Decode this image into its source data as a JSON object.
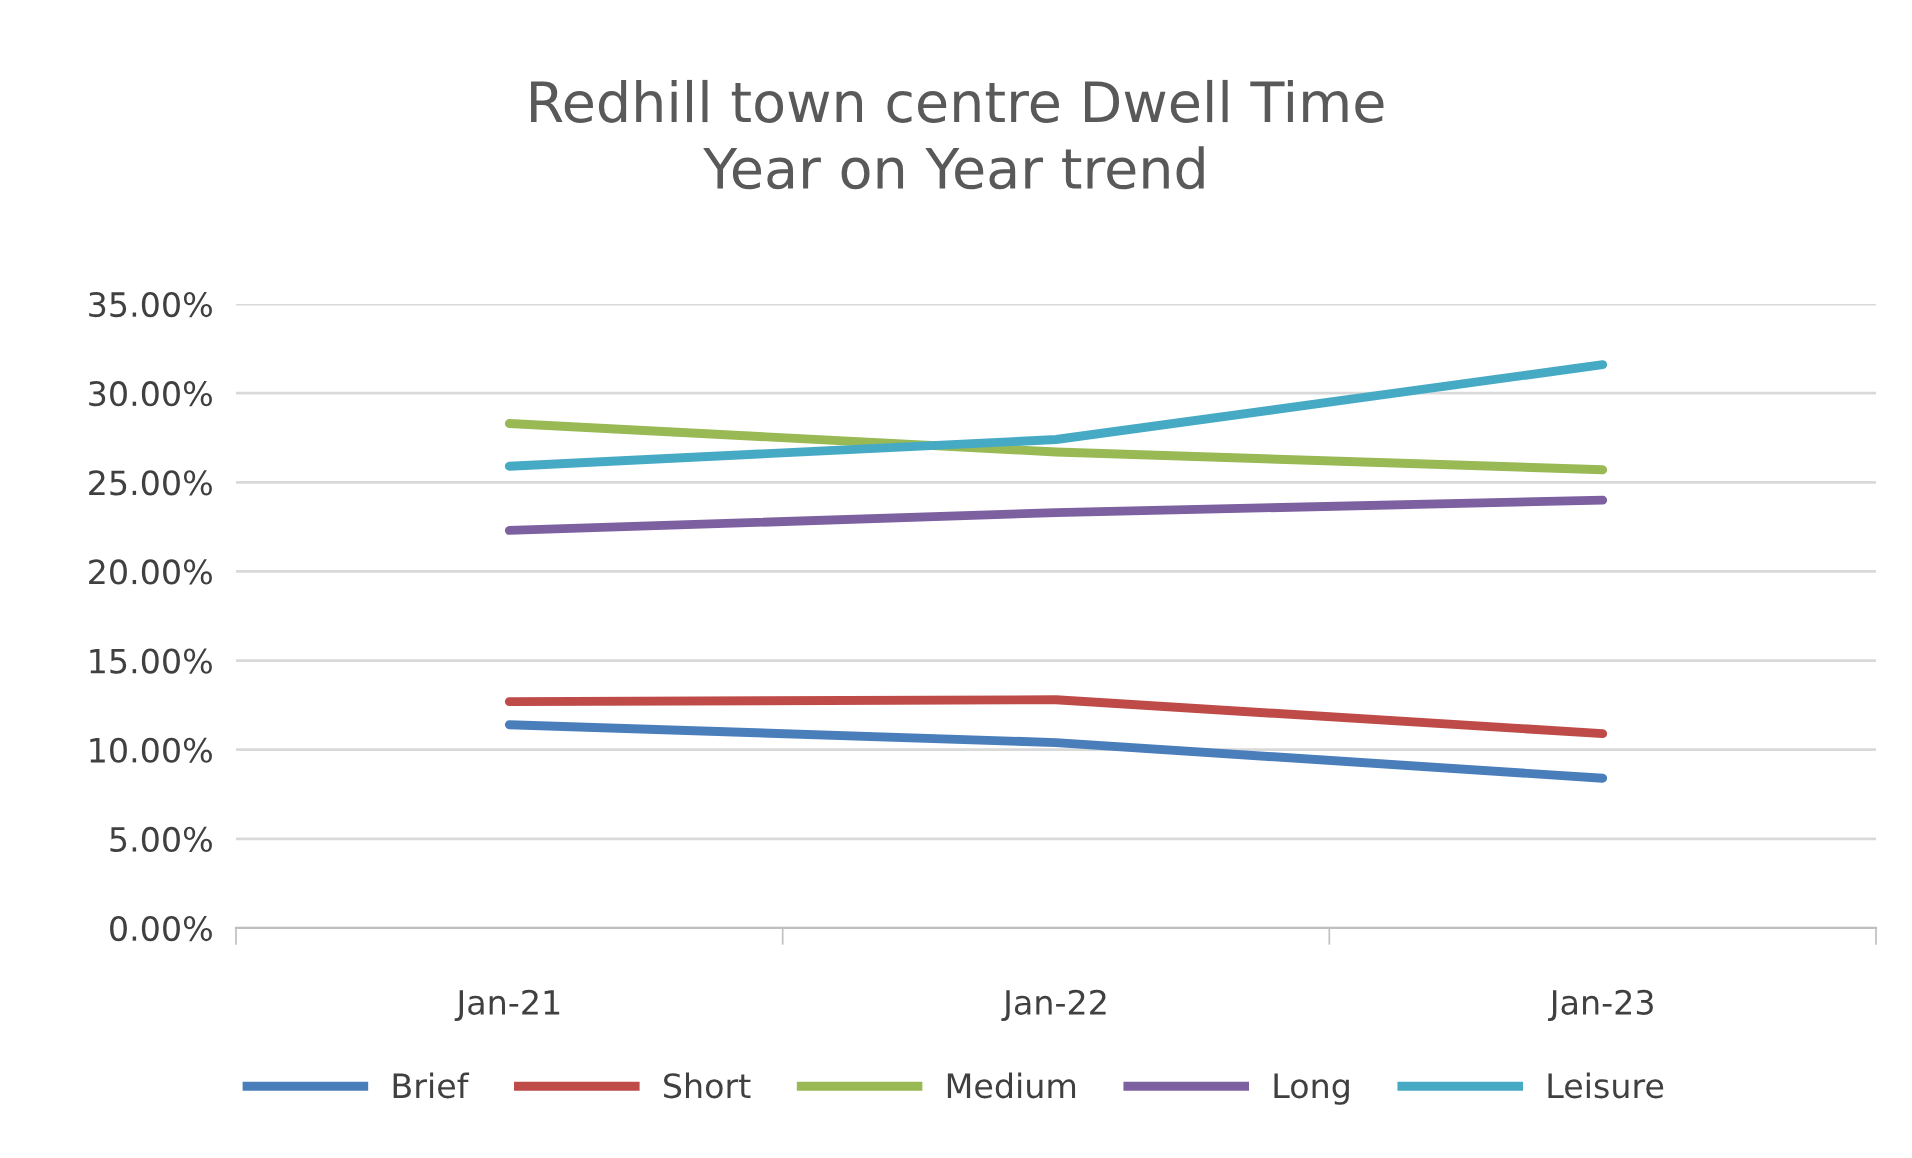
{
  "chart_data": {
    "type": "line",
    "title": "Redhill town centre Dwell Time\nYear on Year trend",
    "categories": [
      "Jan-21",
      "Jan-22",
      "Jan-23"
    ],
    "series": [
      {
        "name": "Brief",
        "color": "#4a7ebb",
        "values": [
          11.4,
          10.4,
          8.4
        ]
      },
      {
        "name": "Short",
        "color": "#be4b48",
        "values": [
          12.7,
          12.8,
          10.9
        ]
      },
      {
        "name": "Medium",
        "color": "#98b954",
        "values": [
          28.3,
          26.7,
          25.7
        ]
      },
      {
        "name": "Long",
        "color": "#7d60a0",
        "values": [
          22.3,
          23.3,
          24.0
        ]
      },
      {
        "name": "Leisure",
        "color": "#46aac5",
        "values": [
          25.9,
          27.4,
          31.6
        ]
      }
    ],
    "ylim": [
      0,
      35
    ],
    "yticks": [
      {
        "value": 0,
        "label": "0.00%"
      },
      {
        "value": 5,
        "label": "5.00%"
      },
      {
        "value": 10,
        "label": "10.00%"
      },
      {
        "value": 15,
        "label": "15.00%"
      },
      {
        "value": 20,
        "label": "20.00%"
      },
      {
        "value": 25,
        "label": "25.00%"
      },
      {
        "value": 30,
        "label": "30.00%"
      },
      {
        "value": 35,
        "label": "35.00%"
      }
    ],
    "grid": "y",
    "legend": "bottom",
    "marker": "none",
    "line_style": "solid"
  }
}
